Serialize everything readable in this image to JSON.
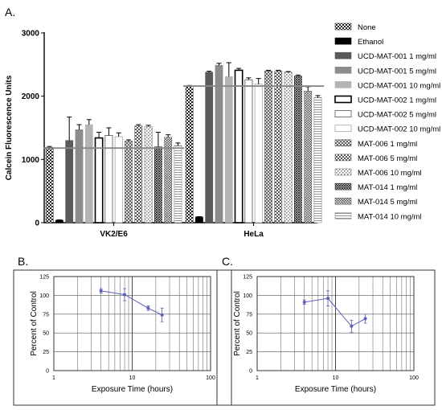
{
  "panels": [
    {
      "label": "A."
    },
    {
      "label": "B."
    },
    {
      "label": "C."
    }
  ],
  "chart_data": [
    {
      "type": "bar",
      "panel": "A.",
      "ylabel": "Calcein Fluorescence Units",
      "ylim": [
        0,
        3000
      ],
      "yticks": [
        0,
        1000,
        2000,
        3000
      ],
      "categories": [
        "VK2/E6",
        "HeLa"
      ],
      "reference_lines": [
        1180,
        2160
      ],
      "legend_position": "right",
      "series": [
        {
          "name": "None",
          "fill": "checker",
          "color": "#222222",
          "values": [
            1190,
            2160
          ],
          "errors": [
            15,
            10
          ]
        },
        {
          "name": "Ethanol",
          "fill": "solid",
          "color": "#000000",
          "values": [
            40,
            90
          ],
          "errors": [
            5,
            5
          ]
        },
        {
          "name": "UCD-MAT-001 1 mg/ml",
          "fill": "solid",
          "color": "#5a5a5a",
          "values": [
            1300,
            2380
          ],
          "errors": [
            370,
            15
          ]
        },
        {
          "name": "UCD-MAT-001 5 mg/ml",
          "fill": "solid",
          "color": "#8c8c8c",
          "values": [
            1470,
            2490
          ],
          "errors": [
            80,
            30
          ]
        },
        {
          "name": "UCD-MAT-001 10 mg/ml",
          "fill": "solid",
          "color": "#b4b4b4",
          "values": [
            1550,
            2310
          ],
          "errors": [
            80,
            220
          ]
        },
        {
          "name": "UCD-MAT-002 1 mg/ml",
          "fill": "outline-thick",
          "color": "#000000",
          "values": [
            1340,
            2410
          ],
          "errors": [
            90,
            30
          ]
        },
        {
          "name": "UCD-MAT-002 5 mg/ml",
          "fill": "outline",
          "color": "#555555",
          "values": [
            1380,
            2260
          ],
          "errors": [
            120,
            30
          ]
        },
        {
          "name": "UCD-MAT-002 10 mg/ml",
          "fill": "outline-light",
          "color": "#999999",
          "values": [
            1360,
            2190
          ],
          "errors": [
            60,
            90
          ]
        },
        {
          "name": "MAT-006 1 mg/ml",
          "fill": "crosshatch",
          "color": "#444444",
          "values": [
            1290,
            2400
          ],
          "errors": [
            20,
            10
          ]
        },
        {
          "name": "MAT-006 5 mg/ml",
          "fill": "checker-light",
          "color": "#444444",
          "values": [
            1530,
            2400
          ],
          "errors": [
            20,
            10
          ]
        },
        {
          "name": "MAT-006 10 mg/ml",
          "fill": "dots",
          "color": "#666666",
          "values": [
            1520,
            2380
          ],
          "errors": [
            20,
            10
          ]
        },
        {
          "name": "MAT-014 1 mg/ml",
          "fill": "crosshatch-dense",
          "color": "#222222",
          "values": [
            1200,
            2320
          ],
          "errors": [
            230,
            15
          ]
        },
        {
          "name": "MAT-014 5 mg/ml",
          "fill": "checker-small",
          "color": "#555555",
          "values": [
            1350,
            2080
          ],
          "errors": [
            40,
            70
          ]
        },
        {
          "name": "MAT-014 10 mg/ml",
          "fill": "hline",
          "color": "#777777",
          "values": [
            1220,
            1980
          ],
          "errors": [
            40,
            30
          ]
        }
      ]
    },
    {
      "type": "line",
      "panel": "B.",
      "xlabel": "Exposure Time (hours)",
      "ylabel": "Percent of Control",
      "xscale": "log",
      "xlim": [
        1,
        100
      ],
      "xticks": [
        1,
        10,
        100
      ],
      "ylim": [
        0,
        125
      ],
      "yticks": [
        0,
        25,
        50,
        75,
        100,
        125
      ],
      "grid": true,
      "color": "#5b5fb5",
      "x": [
        4,
        8,
        16,
        24
      ],
      "y": [
        106,
        101,
        83,
        74
      ],
      "errors": [
        3,
        8,
        3,
        9
      ]
    },
    {
      "type": "line",
      "panel": "C.",
      "xlabel": "Exposure Time (hours)",
      "ylabel": "Percent of Control",
      "xscale": "log",
      "xlim": [
        1,
        100
      ],
      "xticks": [
        1,
        10,
        100
      ],
      "ylim": [
        0,
        125
      ],
      "yticks": [
        0,
        25,
        50,
        75,
        100,
        125
      ],
      "grid": true,
      "color": "#5b5fb5",
      "x": [
        4,
        8,
        16,
        24
      ],
      "y": [
        91,
        96,
        59,
        69
      ],
      "errors": [
        3,
        10,
        8,
        6
      ]
    }
  ]
}
